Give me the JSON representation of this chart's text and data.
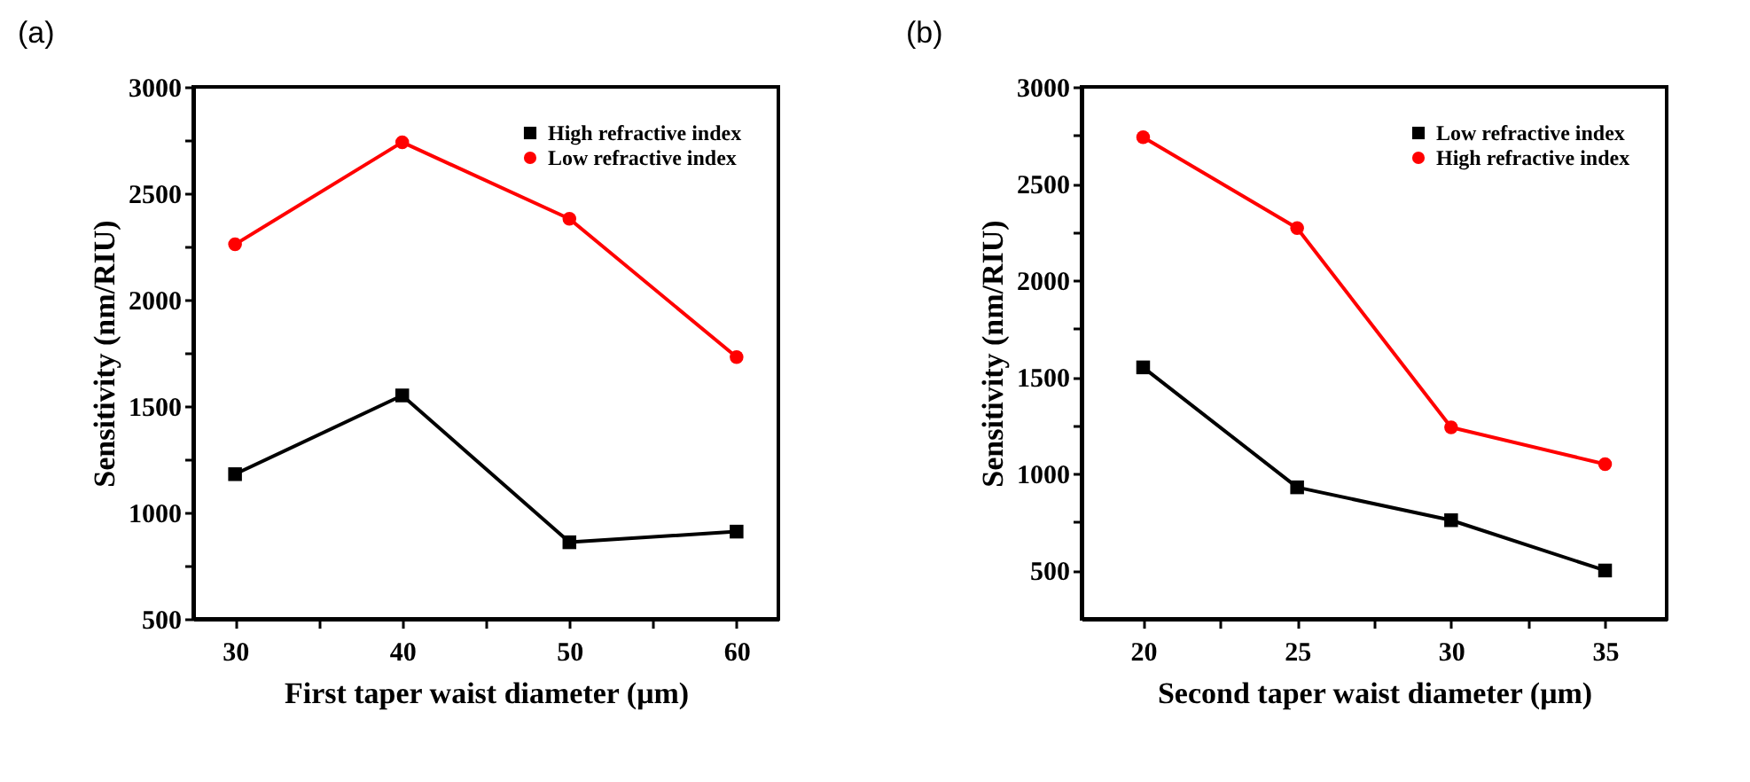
{
  "chart_data": [
    {
      "type": "line",
      "title": "(a)",
      "xlabel": "First taper waist diameter (μm)",
      "ylabel": "Sensitivity (nm/RIU)",
      "x": [
        30,
        40,
        50,
        60
      ],
      "xlim": [
        27.5,
        62.5
      ],
      "xticks": [
        30,
        {
          "value": 35,
          "label": null
        },
        40,
        {
          "value": 45,
          "label": null
        },
        50,
        {
          "value": 55,
          "label": null
        },
        60
      ],
      "ylim": [
        500,
        3000
      ],
      "yticks": [
        500,
        {
          "value": 750,
          "label": null
        },
        1000,
        {
          "value": 1250,
          "label": null
        },
        1500,
        {
          "value": 1750,
          "label": null
        },
        2000,
        {
          "value": 2250,
          "label": null
        },
        2500,
        {
          "value": 2750,
          "label": null
        },
        3000
      ],
      "grid": false,
      "legend": "top right",
      "line_style": "solid",
      "series": [
        {
          "name": "High refractive index",
          "color": "#000000",
          "marker": "square",
          "values": [
            1180,
            1550,
            860,
            910
          ]
        },
        {
          "name": "Low refractive index",
          "color": "#ff0000",
          "marker": "circle",
          "values": [
            2260,
            2740,
            2380,
            1730
          ]
        }
      ]
    },
    {
      "type": "line",
      "title": "(b)",
      "xlabel": "Second taper waist diameter (μm)",
      "ylabel": "Sensitivity (nm/RIU)",
      "x": [
        20,
        25,
        30,
        35
      ],
      "xlim": [
        18,
        37
      ],
      "xticks": [
        20,
        {
          "value": 22.5,
          "label": null
        },
        25,
        {
          "value": 27.5,
          "label": null
        },
        30,
        {
          "value": 32.5,
          "label": null
        },
        35
      ],
      "ylim": [
        250,
        3000
      ],
      "yticks": [
        500,
        {
          "value": 750,
          "label": null
        },
        1000,
        {
          "value": 1250,
          "label": null
        },
        1500,
        {
          "value": 1750,
          "label": null
        },
        2000,
        {
          "value": 2250,
          "label": null
        },
        2500,
        {
          "value": 2750,
          "label": null
        },
        3000
      ],
      "grid": false,
      "legend": "top right",
      "line_style": "solid",
      "series": [
        {
          "name": "Low refractive index",
          "color": "#000000",
          "marker": "square",
          "values": [
            1550,
            930,
            760,
            500
          ]
        },
        {
          "name": "High refractive index",
          "color": "#ff0000",
          "marker": "circle",
          "values": [
            2740,
            2270,
            1240,
            1050
          ]
        }
      ]
    }
  ]
}
